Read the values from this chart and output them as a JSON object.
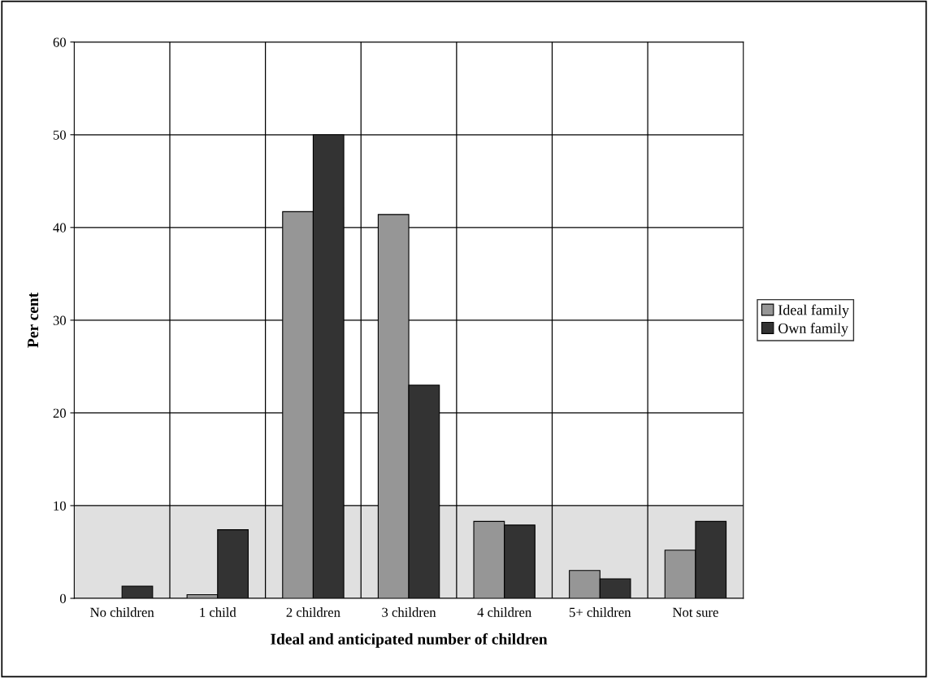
{
  "chart_data": {
    "type": "bar",
    "categories": [
      "No children",
      "1 child",
      "2 children",
      "3 children",
      "4 children",
      "5+ children",
      "Not sure"
    ],
    "series": [
      {
        "name": "Ideal family",
        "color": "#969696",
        "values": [
          null,
          0.4,
          41.7,
          41.4,
          8.3,
          3.0,
          5.2
        ]
      },
      {
        "name": "Own family",
        "color": "#333333",
        "values": [
          1.3,
          7.4,
          50.0,
          23.0,
          7.9,
          2.1,
          8.3
        ]
      }
    ],
    "xlabel": "Ideal and anticipated number of children",
    "ylabel": "Per cent",
    "ylim": [
      0,
      60
    ],
    "yticks": [
      0,
      10,
      20,
      30,
      40,
      50,
      60
    ],
    "bands": [
      {
        "axis": "y",
        "from": 0,
        "to": 10,
        "color": "#e0e0e0"
      }
    ],
    "grid": true,
    "legend": "right"
  }
}
